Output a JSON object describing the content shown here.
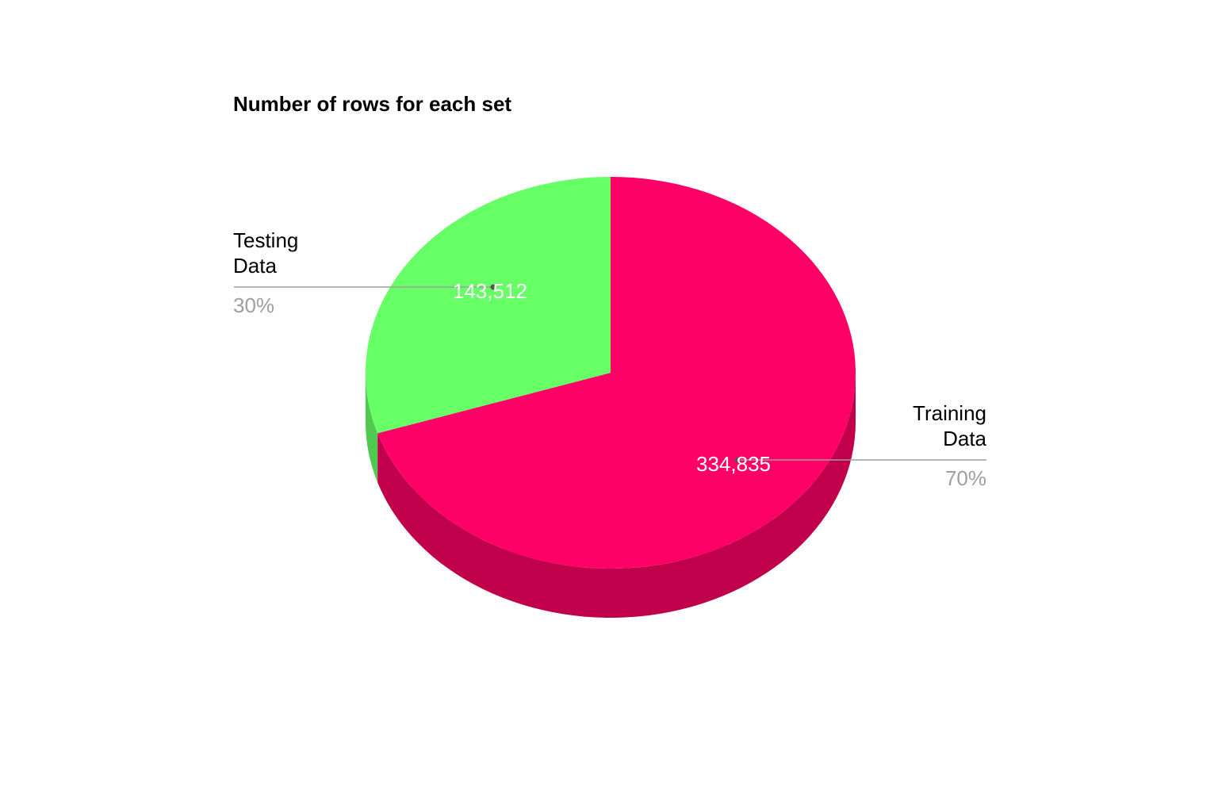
{
  "chart_data": {
    "type": "pie",
    "title": "Number of rows for each set",
    "style": "3d",
    "slices": [
      {
        "label_lines": [
          "Training",
          "Data"
        ],
        "value": 334835,
        "value_text": "334,835",
        "percent_text": "70%",
        "color": "#ff0066",
        "side_color": "#c0004a"
      },
      {
        "label_lines": [
          "Testing",
          "Data"
        ],
        "value": 143512,
        "value_text": "143,512",
        "percent_text": "30%",
        "color": "#66ff66",
        "side_color": "#4fc94f"
      }
    ],
    "label_style": {
      "label_color": "#000000",
      "percent_color": "#9e9e9e",
      "value_label_color": "#ffffff",
      "leader_color": "#9e9e9e"
    }
  }
}
